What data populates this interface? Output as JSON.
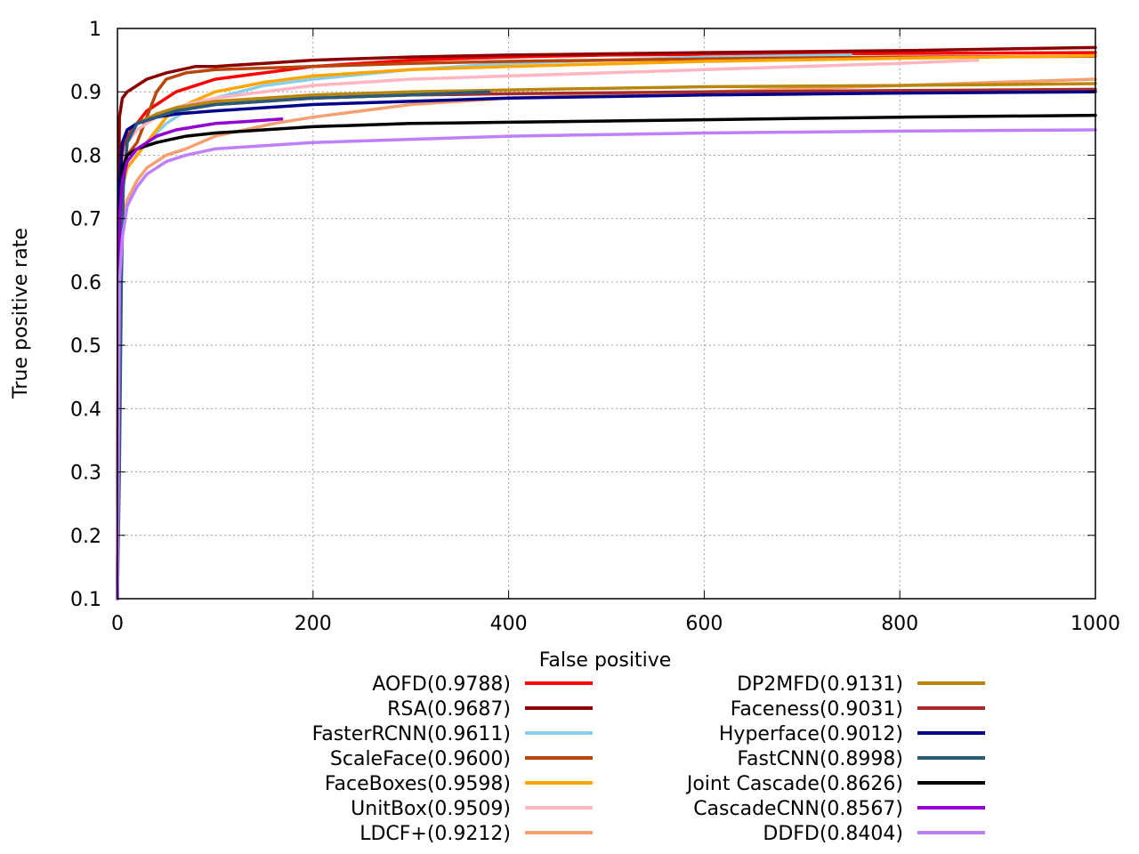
{
  "chart_data": {
    "type": "line",
    "title": "",
    "xlabel": "False positive",
    "ylabel": "True positive rate",
    "xlim": [
      0,
      1000
    ],
    "ylim": [
      0.1,
      1.0
    ],
    "grid": true,
    "legend_position": "bottom",
    "xticks": [
      0,
      200,
      400,
      600,
      800,
      1000
    ],
    "xtick_labels": [
      "0",
      "200",
      "400",
      "600",
      "800",
      "1000"
    ],
    "yticks": [
      0.1,
      0.2,
      0.3,
      0.4,
      0.5,
      0.6,
      0.7,
      0.8,
      0.9,
      1.0
    ],
    "ytick_labels": [
      "0.1",
      "0.2",
      "0.3",
      "0.4",
      "0.5",
      "0.6",
      "0.7",
      "0.8",
      "0.9",
      "1"
    ],
    "series": [
      {
        "name": "AOFD(0.9788)",
        "color": "#ff0000",
        "points": [
          [
            0,
            0.1
          ],
          [
            1,
            0.6
          ],
          [
            2,
            0.74
          ],
          [
            5,
            0.8
          ],
          [
            10,
            0.83
          ],
          [
            20,
            0.85
          ],
          [
            30,
            0.87
          ],
          [
            40,
            0.88
          ],
          [
            50,
            0.89
          ],
          [
            60,
            0.9
          ],
          [
            80,
            0.91
          ],
          [
            100,
            0.92
          ],
          [
            150,
            0.93
          ],
          [
            200,
            0.94
          ],
          [
            300,
            0.95
          ],
          [
            400,
            0.955
          ],
          [
            500,
            0.958
          ],
          [
            700,
            0.96
          ],
          [
            1000,
            0.962
          ]
        ]
      },
      {
        "name": "RSA(0.9687)",
        "color": "#8b0000",
        "points": [
          [
            0,
            0.1
          ],
          [
            1,
            0.7
          ],
          [
            2,
            0.86
          ],
          [
            5,
            0.89
          ],
          [
            10,
            0.9
          ],
          [
            20,
            0.91
          ],
          [
            30,
            0.92
          ],
          [
            50,
            0.93
          ],
          [
            80,
            0.94
          ],
          [
            100,
            0.94
          ],
          [
            150,
            0.945
          ],
          [
            200,
            0.95
          ],
          [
            300,
            0.955
          ],
          [
            400,
            0.958
          ],
          [
            500,
            0.96
          ],
          [
            600,
            0.962
          ],
          [
            800,
            0.965
          ],
          [
            1000,
            0.97
          ]
        ]
      },
      {
        "name": "FasterRCNN(0.9611)",
        "color": "#87ceeb",
        "points": [
          [
            0,
            0.1
          ],
          [
            2,
            0.65
          ],
          [
            5,
            0.75
          ],
          [
            10,
            0.78
          ],
          [
            20,
            0.8
          ],
          [
            30,
            0.82
          ],
          [
            50,
            0.85
          ],
          [
            70,
            0.87
          ],
          [
            100,
            0.89
          ],
          [
            150,
            0.91
          ],
          [
            200,
            0.92
          ],
          [
            300,
            0.935
          ],
          [
            400,
            0.945
          ],
          [
            600,
            0.955
          ],
          [
            750,
            0.958
          ]
        ]
      },
      {
        "name": "ScaleFace(0.9600)",
        "color": "#b8450a",
        "points": [
          [
            0,
            0.1
          ],
          [
            2,
            0.7
          ],
          [
            5,
            0.77
          ],
          [
            10,
            0.8
          ],
          [
            20,
            0.82
          ],
          [
            30,
            0.86
          ],
          [
            40,
            0.9
          ],
          [
            50,
            0.92
          ],
          [
            70,
            0.93
          ],
          [
            100,
            0.935
          ],
          [
            200,
            0.94
          ],
          [
            300,
            0.945
          ],
          [
            400,
            0.948
          ],
          [
            600,
            0.952
          ],
          [
            800,
            0.955
          ],
          [
            1000,
            0.956
          ]
        ]
      },
      {
        "name": "FaceBoxes(0.9598)",
        "color": "#ffa500",
        "points": [
          [
            0,
            0.1
          ],
          [
            2,
            0.7
          ],
          [
            5,
            0.75
          ],
          [
            10,
            0.78
          ],
          [
            20,
            0.8
          ],
          [
            30,
            0.82
          ],
          [
            40,
            0.84
          ],
          [
            50,
            0.86
          ],
          [
            70,
            0.88
          ],
          [
            100,
            0.9
          ],
          [
            150,
            0.915
          ],
          [
            200,
            0.925
          ],
          [
            300,
            0.935
          ],
          [
            400,
            0.94
          ],
          [
            600,
            0.948
          ],
          [
            800,
            0.953
          ],
          [
            1000,
            0.957
          ]
        ]
      },
      {
        "name": "UnitBox(0.9509)",
        "color": "#ffb6c1",
        "points": [
          [
            0,
            0.1
          ],
          [
            2,
            0.7
          ],
          [
            5,
            0.78
          ],
          [
            10,
            0.82
          ],
          [
            20,
            0.84
          ],
          [
            30,
            0.85
          ],
          [
            50,
            0.87
          ],
          [
            70,
            0.88
          ],
          [
            100,
            0.89
          ],
          [
            150,
            0.9
          ],
          [
            200,
            0.91
          ],
          [
            300,
            0.92
          ],
          [
            400,
            0.925
          ],
          [
            600,
            0.935
          ],
          [
            800,
            0.945
          ],
          [
            880,
            0.95
          ]
        ]
      },
      {
        "name": "LDCF+(0.9212)",
        "color": "#f4a070",
        "points": [
          [
            0,
            0.1
          ],
          [
            2,
            0.65
          ],
          [
            5,
            0.7
          ],
          [
            10,
            0.73
          ],
          [
            20,
            0.76
          ],
          [
            30,
            0.78
          ],
          [
            50,
            0.8
          ],
          [
            70,
            0.81
          ],
          [
            100,
            0.83
          ],
          [
            130,
            0.84
          ],
          [
            160,
            0.85
          ],
          [
            200,
            0.86
          ],
          [
            300,
            0.88
          ],
          [
            400,
            0.89
          ],
          [
            600,
            0.9
          ],
          [
            800,
            0.91
          ],
          [
            1000,
            0.92
          ]
        ]
      },
      {
        "name": "DP2MFD(0.9131)",
        "color": "#b8860b",
        "points": [
          [
            0,
            0.1
          ],
          [
            2,
            0.75
          ],
          [
            5,
            0.82
          ],
          [
            10,
            0.84
          ],
          [
            20,
            0.85
          ],
          [
            40,
            0.865
          ],
          [
            60,
            0.875
          ],
          [
            100,
            0.885
          ],
          [
            200,
            0.895
          ],
          [
            300,
            0.9
          ],
          [
            400,
            0.903
          ],
          [
            600,
            0.908
          ],
          [
            800,
            0.91
          ],
          [
            1000,
            0.913
          ]
        ]
      },
      {
        "name": "Faceness(0.9031)",
        "color": "#a52a2a",
        "points": [
          [
            0,
            0.1
          ],
          [
            2,
            0.75
          ],
          [
            5,
            0.81
          ],
          [
            10,
            0.83
          ],
          [
            20,
            0.85
          ],
          [
            40,
            0.86
          ],
          [
            60,
            0.87
          ],
          [
            100,
            0.88
          ],
          [
            200,
            0.89
          ],
          [
            300,
            0.895
          ],
          [
            400,
            0.897
          ],
          [
            600,
            0.9
          ],
          [
            800,
            0.902
          ],
          [
            1000,
            0.904
          ]
        ]
      },
      {
        "name": "Hyperface(0.9012)",
        "color": "#00008b",
        "points": [
          [
            0,
            0.1
          ],
          [
            2,
            0.75
          ],
          [
            5,
            0.82
          ],
          [
            10,
            0.84
          ],
          [
            20,
            0.85
          ],
          [
            40,
            0.86
          ],
          [
            60,
            0.865
          ],
          [
            100,
            0.87
          ],
          [
            200,
            0.88
          ],
          [
            300,
            0.885
          ],
          [
            400,
            0.89
          ],
          [
            600,
            0.895
          ],
          [
            800,
            0.898
          ],
          [
            1000,
            0.9
          ]
        ]
      },
      {
        "name": "FastCNN(0.8998)",
        "color": "#2a5a7a",
        "points": [
          [
            0,
            0.1
          ],
          [
            2,
            0.3
          ],
          [
            4,
            0.6
          ],
          [
            6,
            0.75
          ],
          [
            10,
            0.82
          ],
          [
            20,
            0.85
          ],
          [
            40,
            0.86
          ],
          [
            60,
            0.87
          ],
          [
            100,
            0.88
          ],
          [
            150,
            0.885
          ],
          [
            200,
            0.89
          ],
          [
            300,
            0.895
          ],
          [
            380,
            0.9
          ]
        ]
      },
      {
        "name": "Joint Cascade(0.8626)",
        "color": "#000000",
        "points": [
          [
            0,
            0.1
          ],
          [
            2,
            0.7
          ],
          [
            5,
            0.78
          ],
          [
            10,
            0.8
          ],
          [
            20,
            0.81
          ],
          [
            40,
            0.82
          ],
          [
            70,
            0.83
          ],
          [
            100,
            0.835
          ],
          [
            200,
            0.845
          ],
          [
            300,
            0.85
          ],
          [
            400,
            0.852
          ],
          [
            600,
            0.856
          ],
          [
            800,
            0.86
          ],
          [
            1000,
            0.863
          ]
        ]
      },
      {
        "name": "CascadeCNN(0.8567)",
        "color": "#9400d3",
        "points": [
          [
            0,
            0.1
          ],
          [
            2,
            0.7
          ],
          [
            5,
            0.76
          ],
          [
            10,
            0.79
          ],
          [
            20,
            0.81
          ],
          [
            40,
            0.83
          ],
          [
            60,
            0.84
          ],
          [
            80,
            0.845
          ],
          [
            100,
            0.85
          ],
          [
            130,
            0.853
          ],
          [
            168,
            0.857
          ]
        ]
      },
      {
        "name": "DDFD(0.8404)",
        "color": "#bf80ff",
        "points": [
          [
            0,
            0.1
          ],
          [
            2,
            0.6
          ],
          [
            5,
            0.67
          ],
          [
            10,
            0.72
          ],
          [
            20,
            0.75
          ],
          [
            30,
            0.77
          ],
          [
            50,
            0.79
          ],
          [
            70,
            0.8
          ],
          [
            100,
            0.81
          ],
          [
            200,
            0.82
          ],
          [
            300,
            0.825
          ],
          [
            400,
            0.83
          ],
          [
            600,
            0.835
          ],
          [
            800,
            0.838
          ],
          [
            1000,
            0.84
          ]
        ]
      }
    ]
  }
}
